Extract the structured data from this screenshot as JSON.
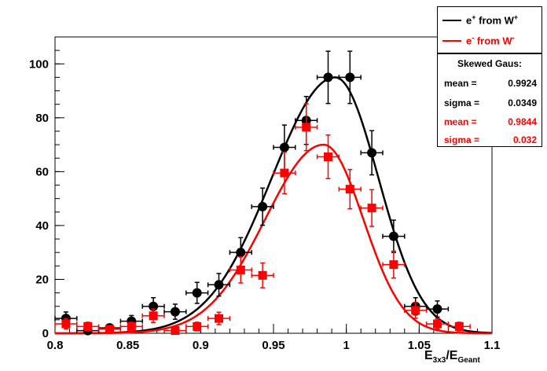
{
  "chart_data": {
    "type": "scatter",
    "xlim": [
      0.8,
      1.1
    ],
    "ylim": [
      0,
      110
    ],
    "x_ticks": [
      "0.8",
      "0.85",
      "0.9",
      "0.95",
      "1",
      "1.05",
      "1.1"
    ],
    "y_ticks": [
      "0",
      "20",
      "40",
      "60",
      "80",
      "100"
    ],
    "x_tick_values": [
      0.8,
      0.85,
      0.9,
      0.95,
      1.0,
      1.05,
      1.1
    ],
    "y_tick_values": [
      0,
      20,
      40,
      60,
      80,
      100
    ],
    "xlabel_main": "E",
    "xlabel_sub1": "3x3",
    "xlabel_sep": "/E",
    "xlabel_sub2": "Geant",
    "legend": {
      "positron": {
        "pre": "e",
        "sup": "+",
        "mid": " from W",
        "sup2": "+"
      },
      "electron": {
        "pre": "e",
        "sup": "-",
        "mid": " from W",
        "sup2": "-"
      }
    },
    "stats": {
      "title": "Skewed Gaus:",
      "rows": [
        {
          "key": "mean =",
          "value": "0.9924"
        },
        {
          "key": "sigma =",
          "value": "0.0349"
        },
        {
          "key": "mean =",
          "value": "0.9844"
        },
        {
          "key": "sigma =",
          "value": "0.032"
        }
      ]
    },
    "series": [
      {
        "color": "#000000",
        "marker": "circle",
        "x": [
          0.8075,
          0.8225,
          0.8375,
          0.8525,
          0.8675,
          0.8825,
          0.8975,
          0.9125,
          0.9275,
          0.9425,
          0.9575,
          0.9725,
          0.9875,
          1.0025,
          1.0175,
          1.0325,
          1.0475,
          1.0625
        ],
        "y": [
          5.5,
          1.0,
          2.0,
          4.5,
          10.0,
          8.0,
          15.0,
          18.0,
          30.0,
          47.0,
          69.0,
          79.0,
          95.0,
          95.0,
          67.0,
          36.0,
          10.0,
          9.0
        ],
        "yerr": [
          2.4,
          1.0,
          1.4,
          2.1,
          3.2,
          2.8,
          3.9,
          4.2,
          5.5,
          6.9,
          8.3,
          8.9,
          9.7,
          9.7,
          8.2,
          6.0,
          3.2,
          3.0
        ],
        "fit_mean": 0.9924,
        "fit_sigma": 0.0349,
        "fit_amp": 95
      },
      {
        "color": "#ff0000",
        "marker": "square",
        "x": [
          0.8075,
          0.8225,
          0.8375,
          0.8525,
          0.8675,
          0.8825,
          0.8975,
          0.9125,
          0.9275,
          0.9425,
          0.9575,
          0.9725,
          0.9875,
          1.0025,
          1.0175,
          1.0325,
          1.0475,
          1.0625,
          1.0775
        ],
        "y": [
          3.5,
          2.5,
          1.5,
          2.5,
          6.5,
          1.0,
          2.5,
          5.5,
          23.5,
          21.5,
          59.5,
          76.5,
          65.5,
          53.5,
          46.5,
          25.5,
          8.5,
          3.5,
          2.5
        ],
        "yerr": [
          1.9,
          1.6,
          1.2,
          1.6,
          2.5,
          1.0,
          1.6,
          2.3,
          4.8,
          4.6,
          7.7,
          8.7,
          8.1,
          7.3,
          6.8,
          5.0,
          2.9,
          1.9,
          1.6
        ],
        "fit_mean": 0.9844,
        "fit_sigma": 0.032,
        "fit_amp": 70
      }
    ]
  }
}
